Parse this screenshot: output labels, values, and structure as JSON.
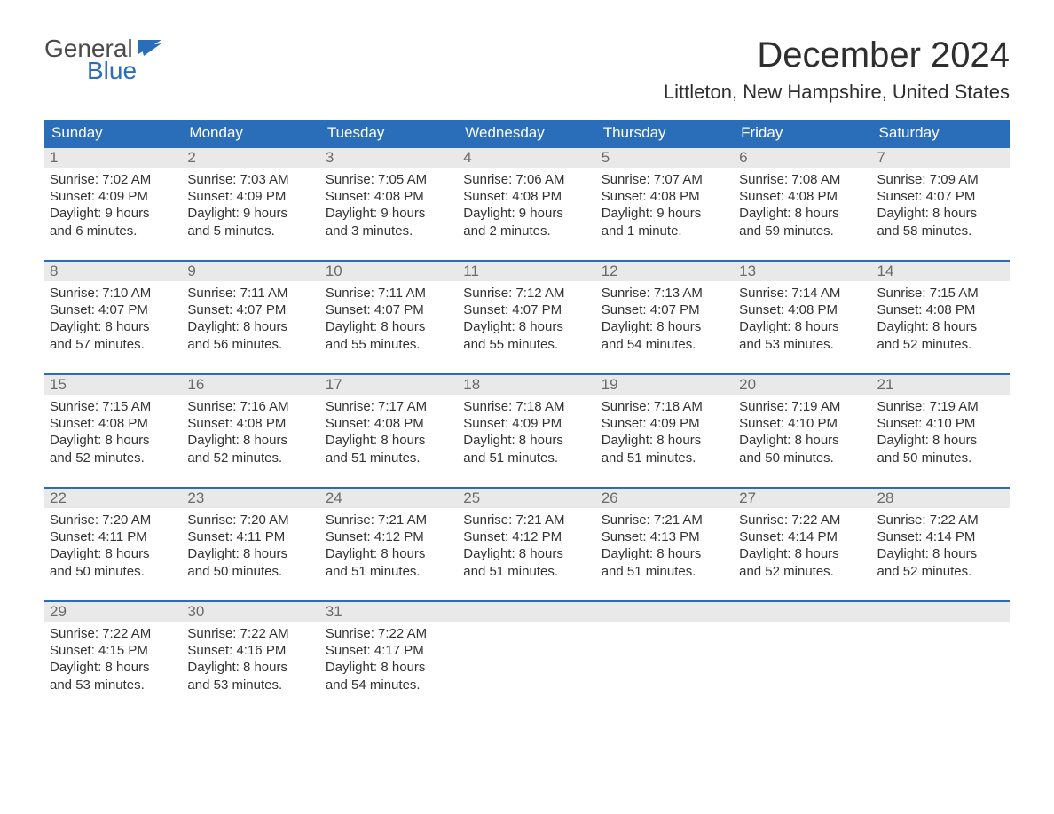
{
  "brand": {
    "line1": "General",
    "line2": "Blue",
    "text_color_top": "#4a4a4a",
    "text_color_bottom": "#2a6db8",
    "flag_color": "#2a6db8"
  },
  "title": "December 2024",
  "location": "Littleton, New Hampshire, United States",
  "colors": {
    "header_bg": "#2a6db8",
    "header_text": "#ffffff",
    "week_border": "#2a6db8",
    "daynum_bg": "#e9e9e9",
    "daynum_text": "#6b6b6b",
    "body_text": "#333333",
    "page_bg": "#ffffff"
  },
  "typography": {
    "title_fontsize": 40,
    "location_fontsize": 22,
    "dayheader_fontsize": 17,
    "daynum_fontsize": 17,
    "body_fontsize": 15
  },
  "day_labels": [
    "Sunday",
    "Monday",
    "Tuesday",
    "Wednesday",
    "Thursday",
    "Friday",
    "Saturday"
  ],
  "weeks": [
    [
      {
        "n": "1",
        "sunrise": "Sunrise: 7:02 AM",
        "sunset": "Sunset: 4:09 PM",
        "d1": "Daylight: 9 hours",
        "d2": "and 6 minutes."
      },
      {
        "n": "2",
        "sunrise": "Sunrise: 7:03 AM",
        "sunset": "Sunset: 4:09 PM",
        "d1": "Daylight: 9 hours",
        "d2": "and 5 minutes."
      },
      {
        "n": "3",
        "sunrise": "Sunrise: 7:05 AM",
        "sunset": "Sunset: 4:08 PM",
        "d1": "Daylight: 9 hours",
        "d2": "and 3 minutes."
      },
      {
        "n": "4",
        "sunrise": "Sunrise: 7:06 AM",
        "sunset": "Sunset: 4:08 PM",
        "d1": "Daylight: 9 hours",
        "d2": "and 2 minutes."
      },
      {
        "n": "5",
        "sunrise": "Sunrise: 7:07 AM",
        "sunset": "Sunset: 4:08 PM",
        "d1": "Daylight: 9 hours",
        "d2": "and 1 minute."
      },
      {
        "n": "6",
        "sunrise": "Sunrise: 7:08 AM",
        "sunset": "Sunset: 4:08 PM",
        "d1": "Daylight: 8 hours",
        "d2": "and 59 minutes."
      },
      {
        "n": "7",
        "sunrise": "Sunrise: 7:09 AM",
        "sunset": "Sunset: 4:07 PM",
        "d1": "Daylight: 8 hours",
        "d2": "and 58 minutes."
      }
    ],
    [
      {
        "n": "8",
        "sunrise": "Sunrise: 7:10 AM",
        "sunset": "Sunset: 4:07 PM",
        "d1": "Daylight: 8 hours",
        "d2": "and 57 minutes."
      },
      {
        "n": "9",
        "sunrise": "Sunrise: 7:11 AM",
        "sunset": "Sunset: 4:07 PM",
        "d1": "Daylight: 8 hours",
        "d2": "and 56 minutes."
      },
      {
        "n": "10",
        "sunrise": "Sunrise: 7:11 AM",
        "sunset": "Sunset: 4:07 PM",
        "d1": "Daylight: 8 hours",
        "d2": "and 55 minutes."
      },
      {
        "n": "11",
        "sunrise": "Sunrise: 7:12 AM",
        "sunset": "Sunset: 4:07 PM",
        "d1": "Daylight: 8 hours",
        "d2": "and 55 minutes."
      },
      {
        "n": "12",
        "sunrise": "Sunrise: 7:13 AM",
        "sunset": "Sunset: 4:07 PM",
        "d1": "Daylight: 8 hours",
        "d2": "and 54 minutes."
      },
      {
        "n": "13",
        "sunrise": "Sunrise: 7:14 AM",
        "sunset": "Sunset: 4:08 PM",
        "d1": "Daylight: 8 hours",
        "d2": "and 53 minutes."
      },
      {
        "n": "14",
        "sunrise": "Sunrise: 7:15 AM",
        "sunset": "Sunset: 4:08 PM",
        "d1": "Daylight: 8 hours",
        "d2": "and 52 minutes."
      }
    ],
    [
      {
        "n": "15",
        "sunrise": "Sunrise: 7:15 AM",
        "sunset": "Sunset: 4:08 PM",
        "d1": "Daylight: 8 hours",
        "d2": "and 52 minutes."
      },
      {
        "n": "16",
        "sunrise": "Sunrise: 7:16 AM",
        "sunset": "Sunset: 4:08 PM",
        "d1": "Daylight: 8 hours",
        "d2": "and 52 minutes."
      },
      {
        "n": "17",
        "sunrise": "Sunrise: 7:17 AM",
        "sunset": "Sunset: 4:08 PM",
        "d1": "Daylight: 8 hours",
        "d2": "and 51 minutes."
      },
      {
        "n": "18",
        "sunrise": "Sunrise: 7:18 AM",
        "sunset": "Sunset: 4:09 PM",
        "d1": "Daylight: 8 hours",
        "d2": "and 51 minutes."
      },
      {
        "n": "19",
        "sunrise": "Sunrise: 7:18 AM",
        "sunset": "Sunset: 4:09 PM",
        "d1": "Daylight: 8 hours",
        "d2": "and 51 minutes."
      },
      {
        "n": "20",
        "sunrise": "Sunrise: 7:19 AM",
        "sunset": "Sunset: 4:10 PM",
        "d1": "Daylight: 8 hours",
        "d2": "and 50 minutes."
      },
      {
        "n": "21",
        "sunrise": "Sunrise: 7:19 AM",
        "sunset": "Sunset: 4:10 PM",
        "d1": "Daylight: 8 hours",
        "d2": "and 50 minutes."
      }
    ],
    [
      {
        "n": "22",
        "sunrise": "Sunrise: 7:20 AM",
        "sunset": "Sunset: 4:11 PM",
        "d1": "Daylight: 8 hours",
        "d2": "and 50 minutes."
      },
      {
        "n": "23",
        "sunrise": "Sunrise: 7:20 AM",
        "sunset": "Sunset: 4:11 PM",
        "d1": "Daylight: 8 hours",
        "d2": "and 50 minutes."
      },
      {
        "n": "24",
        "sunrise": "Sunrise: 7:21 AM",
        "sunset": "Sunset: 4:12 PM",
        "d1": "Daylight: 8 hours",
        "d2": "and 51 minutes."
      },
      {
        "n": "25",
        "sunrise": "Sunrise: 7:21 AM",
        "sunset": "Sunset: 4:12 PM",
        "d1": "Daylight: 8 hours",
        "d2": "and 51 minutes."
      },
      {
        "n": "26",
        "sunrise": "Sunrise: 7:21 AM",
        "sunset": "Sunset: 4:13 PM",
        "d1": "Daylight: 8 hours",
        "d2": "and 51 minutes."
      },
      {
        "n": "27",
        "sunrise": "Sunrise: 7:22 AM",
        "sunset": "Sunset: 4:14 PM",
        "d1": "Daylight: 8 hours",
        "d2": "and 52 minutes."
      },
      {
        "n": "28",
        "sunrise": "Sunrise: 7:22 AM",
        "sunset": "Sunset: 4:14 PM",
        "d1": "Daylight: 8 hours",
        "d2": "and 52 minutes."
      }
    ],
    [
      {
        "n": "29",
        "sunrise": "Sunrise: 7:22 AM",
        "sunset": "Sunset: 4:15 PM",
        "d1": "Daylight: 8 hours",
        "d2": "and 53 minutes."
      },
      {
        "n": "30",
        "sunrise": "Sunrise: 7:22 AM",
        "sunset": "Sunset: 4:16 PM",
        "d1": "Daylight: 8 hours",
        "d2": "and 53 minutes."
      },
      {
        "n": "31",
        "sunrise": "Sunrise: 7:22 AM",
        "sunset": "Sunset: 4:17 PM",
        "d1": "Daylight: 8 hours",
        "d2": "and 54 minutes."
      },
      {
        "empty": true
      },
      {
        "empty": true
      },
      {
        "empty": true
      },
      {
        "empty": true
      }
    ]
  ]
}
